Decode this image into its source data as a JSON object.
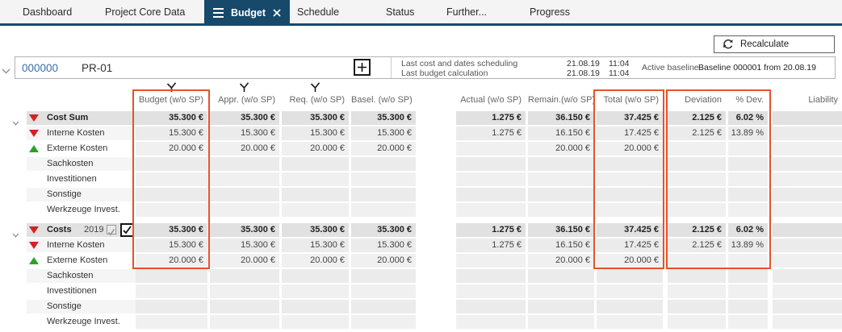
{
  "colors": {
    "navy": "#17496a",
    "highlight_orange": "#e8512c",
    "red_indicator": "#d32222",
    "green_indicator": "#28a428",
    "project_id_blue": "#3a6ea8"
  },
  "tabs": [
    {
      "label": "Dashboard",
      "active": false
    },
    {
      "label": "Project Core Data",
      "active": false
    },
    {
      "label": "Budget",
      "active": true,
      "has_menu_icon": true,
      "has_close_icon": true
    },
    {
      "label": "Schedule",
      "active": false
    },
    {
      "label": "Status",
      "active": false
    },
    {
      "label": "Further...",
      "active": false
    },
    {
      "label": "Progress",
      "active": false
    }
  ],
  "toolbar": {
    "recalculate_label": "Recalculate"
  },
  "project": {
    "id": "000000",
    "name": "PR-01",
    "info": [
      {
        "label": "Last cost and dates scheduling",
        "date": "21.08.19",
        "time": "11:04"
      },
      {
        "label": "Last budget calculation",
        "date": "21.08.19",
        "time": "11:04"
      }
    ],
    "active_baseline_label": "Active baseline",
    "baseline_value": "Baseline 000001 from 20.08.19"
  },
  "table": {
    "columns": [
      {
        "key": "budget",
        "label": "Budget (w/o SP)"
      },
      {
        "key": "appr",
        "label": "Appr. (w/o SP)"
      },
      {
        "key": "req",
        "label": "Req. (w/o SP)"
      },
      {
        "key": "basel",
        "label": "Basel. (w/o SP)"
      },
      {
        "key": "actual",
        "label": "Actual (w/o SP)"
      },
      {
        "key": "remain",
        "label": "Remain.(w/o SP)"
      },
      {
        "key": "total",
        "label": "Total (w/o SP)"
      },
      {
        "key": "deviation",
        "label": "Deviation"
      },
      {
        "key": "pdev",
        "label": "% Dev."
      },
      {
        "key": "liability",
        "label": "Liability"
      }
    ],
    "filter_columns": [
      "budget",
      "appr",
      "req"
    ],
    "groups": [
      {
        "header": {
          "label": "Cost Sum",
          "indicator": "red-down",
          "values": {
            "budget": "35.300 €",
            "appr": "35.300 €",
            "req": "35.300 €",
            "basel": "35.300 €",
            "actual": "1.275 €",
            "remain": "36.150 €",
            "total": "37.425 €",
            "deviation": "2.125 €",
            "pdev": "6.02 %",
            "liability": ""
          }
        },
        "rows": [
          {
            "label": "Interne Kosten",
            "indicator": "red-down",
            "values": {
              "budget": "15.300 €",
              "appr": "15.300 €",
              "req": "15.300 €",
              "basel": "15.300 €",
              "actual": "1.275 €",
              "remain": "16.150 €",
              "total": "17.425 €",
              "deviation": "2.125 €",
              "pdev": "13.89 %",
              "liability": ""
            }
          },
          {
            "label": "Externe Kosten",
            "indicator": "green-up",
            "values": {
              "budget": "20.000 €",
              "appr": "20.000 €",
              "req": "20.000 €",
              "basel": "20.000 €",
              "actual": "",
              "remain": "20.000 €",
              "total": "20.000 €",
              "deviation": "",
              "pdev": "",
              "liability": ""
            }
          },
          {
            "label": "Sachkosten",
            "indicator": null,
            "values": {}
          },
          {
            "label": "Investitionen",
            "indicator": null,
            "values": {}
          },
          {
            "label": "Sonstige",
            "indicator": null,
            "values": {}
          },
          {
            "label": "Werkzeuge Invest.",
            "indicator": null,
            "values": {}
          }
        ]
      },
      {
        "header": {
          "label": "Costs",
          "indicator": "red-down",
          "year": "2019",
          "checkbox_disabled_checked": true,
          "checkbox_main_checked": true,
          "values": {
            "budget": "35.300 €",
            "appr": "35.300 €",
            "req": "35.300 €",
            "basel": "35.300 €",
            "actual": "1.275 €",
            "remain": "36.150 €",
            "total": "37.425 €",
            "deviation": "2.125 €",
            "pdev": "6.02 %",
            "liability": ""
          }
        },
        "rows": [
          {
            "label": "Interne Kosten",
            "indicator": "red-down",
            "values": {
              "budget": "15.300 €",
              "appr": "15.300 €",
              "req": "15.300 €",
              "basel": "15.300 €",
              "actual": "1.275 €",
              "remain": "16.150 €",
              "total": "17.425 €",
              "deviation": "2.125 €",
              "pdev": "13.89 %",
              "liability": ""
            }
          },
          {
            "label": "Externe Kosten",
            "indicator": "green-up",
            "values": {
              "budget": "20.000 €",
              "appr": "20.000 €",
              "req": "20.000 €",
              "basel": "20.000 €",
              "actual": "",
              "remain": "20.000 €",
              "total": "20.000 €",
              "deviation": "",
              "pdev": "",
              "liability": ""
            }
          },
          {
            "label": "Sachkosten",
            "indicator": null,
            "values": {}
          },
          {
            "label": "Investitionen",
            "indicator": null,
            "values": {}
          },
          {
            "label": "Sonstige",
            "indicator": null,
            "values": {}
          },
          {
            "label": "Werkzeuge Invest.",
            "indicator": null,
            "values": {}
          }
        ]
      }
    ]
  }
}
